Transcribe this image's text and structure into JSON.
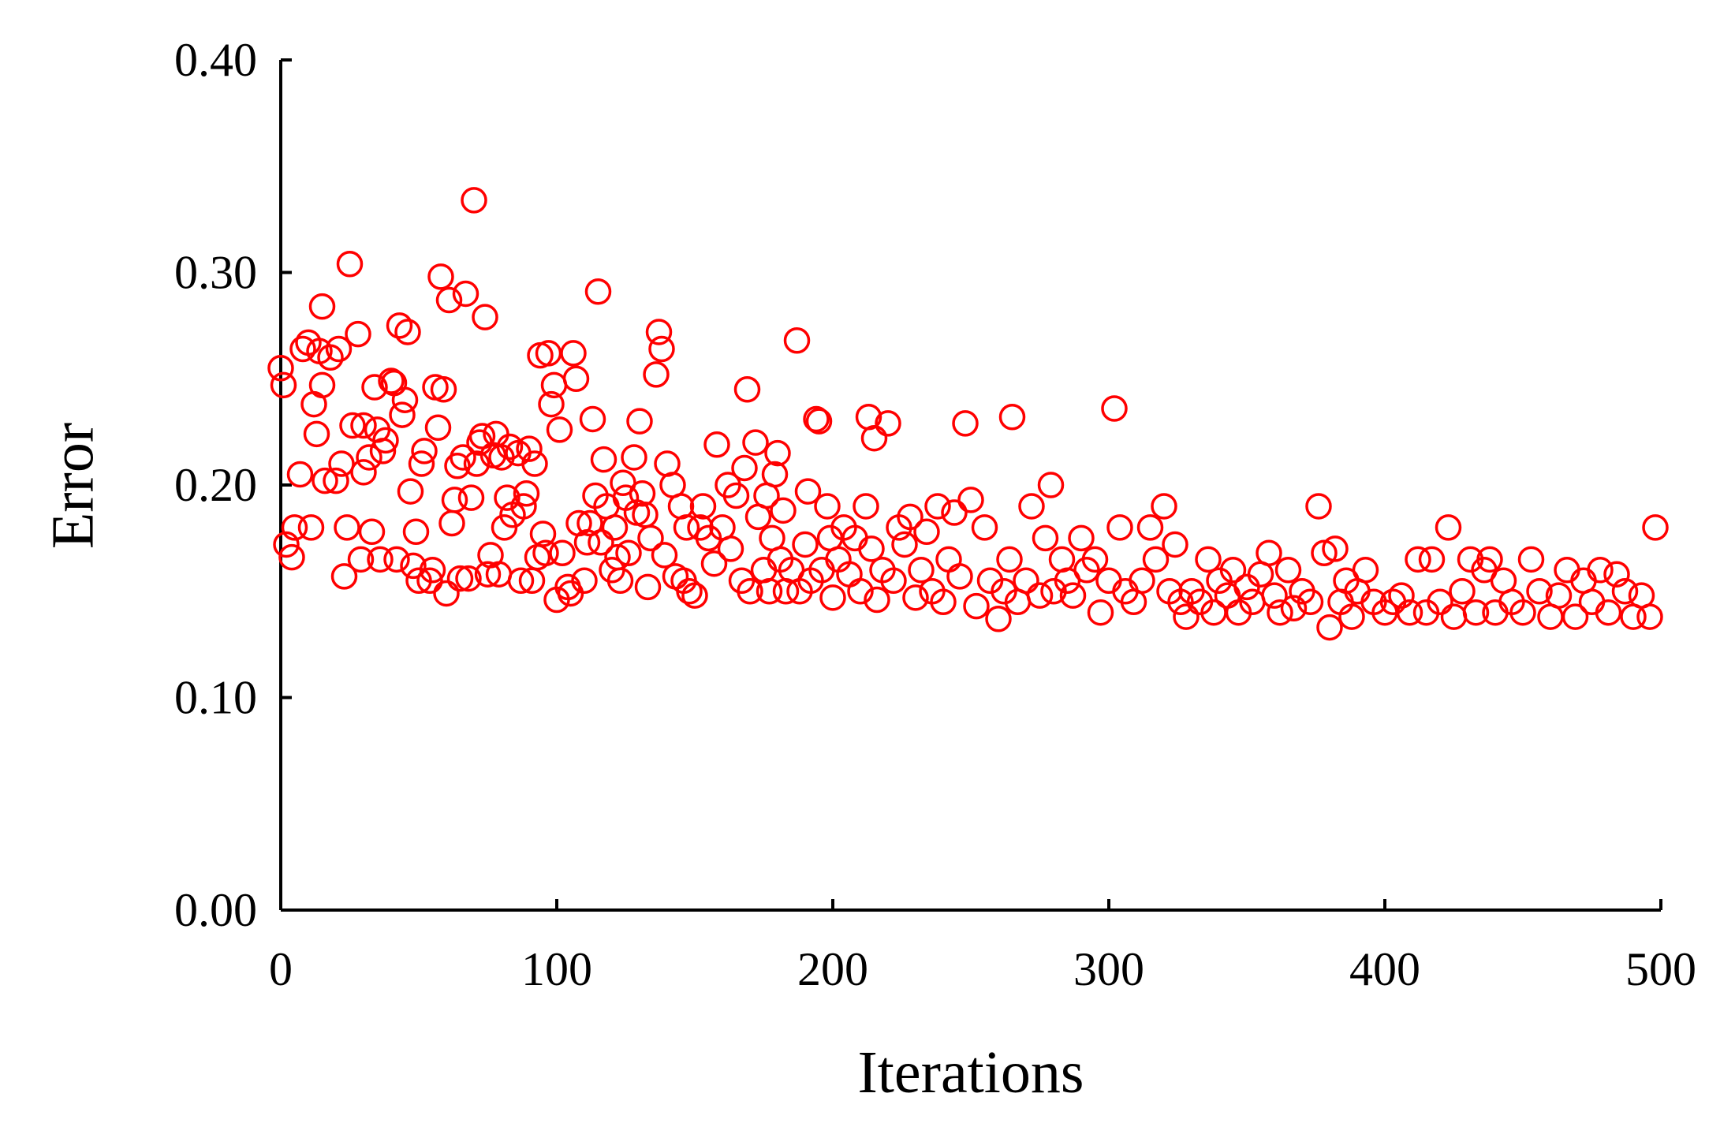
{
  "chart_data": {
    "type": "scatter",
    "xlabel": "Iterations",
    "ylabel": "Error",
    "color": "#ff0000",
    "xlim": [
      0,
      500
    ],
    "xticks": [
      0,
      100,
      200,
      300,
      400,
      500
    ],
    "ylim": [
      0,
      0.4
    ],
    "yticks": [
      {
        "value": 0,
        "label": "0.00"
      },
      {
        "value": 0.1,
        "label": "0.10"
      },
      {
        "value": 0.2,
        "label": "0.20"
      },
      {
        "value": 0.3,
        "label": "0.30"
      },
      {
        "value": 0.4,
        "label": "0.40"
      }
    ],
    "x": [
      0,
      1,
      2,
      4,
      5,
      7,
      8,
      10,
      11,
      12,
      13,
      14,
      15,
      15,
      16,
      18,
      20,
      21,
      22,
      23,
      24,
      25,
      26,
      28,
      29,
      30,
      30,
      32,
      33,
      34,
      35,
      36,
      37,
      38,
      40,
      41,
      42,
      43,
      44,
      45,
      46,
      47,
      48,
      49,
      50,
      51,
      52,
      54,
      55,
      56,
      57,
      58,
      59,
      60,
      61,
      62,
      63,
      64,
      65,
      66,
      67,
      68,
      69,
      70,
      71,
      72,
      73,
      74,
      75,
      76,
      77,
      78,
      79,
      80,
      81,
      82,
      83,
      84,
      86,
      87,
      88,
      89,
      90,
      91,
      92,
      93,
      94,
      95,
      96,
      97,
      98,
      99,
      100,
      101,
      102,
      104,
      105,
      106,
      107,
      108,
      110,
      111,
      112,
      113,
      114,
      115,
      116,
      117,
      118,
      120,
      121,
      122,
      123,
      124,
      125,
      126,
      128,
      129,
      130,
      131,
      132,
      133,
      134,
      136,
      137,
      138,
      139,
      140,
      142,
      143,
      145,
      146,
      147,
      148,
      150,
      152,
      153,
      155,
      157,
      158,
      160,
      162,
      163,
      165,
      167,
      168,
      169,
      170,
      172,
      173,
      175,
      176,
      177,
      178,
      179,
      180,
      181,
      182,
      183,
      185,
      187,
      188,
      190,
      191,
      192,
      194,
      195,
      196,
      198,
      199,
      200,
      202,
      204,
      206,
      208,
      210,
      212,
      213,
      214,
      215,
      216,
      218,
      220,
      222,
      224,
      226,
      228,
      230,
      232,
      234,
      236,
      238,
      240,
      242,
      244,
      246,
      248,
      250,
      252,
      255,
      257,
      260,
      262,
      264,
      265,
      267,
      270,
      272,
      275,
      277,
      279,
      280,
      283,
      285,
      287,
      290,
      292,
      295,
      297,
      300,
      302,
      304,
      306,
      309,
      312,
      315,
      317,
      320,
      322,
      324,
      326,
      328,
      330,
      333,
      336,
      338,
      340,
      343,
      345,
      347,
      350,
      352,
      355,
      358,
      360,
      362,
      365,
      367,
      370,
      373,
      376,
      378,
      380,
      382,
      384,
      386,
      388,
      390,
      393,
      396,
      400,
      403,
      406,
      409,
      412,
      415,
      417,
      420,
      423,
      425,
      428,
      431,
      433,
      436,
      438,
      440,
      443,
      446,
      450,
      453,
      456,
      460,
      463,
      466,
      469,
      472,
      475,
      478,
      481,
      484,
      487,
      490,
      493,
      496,
      498
    ],
    "values": [
      0.255,
      0.247,
      0.172,
      0.166,
      0.18,
      0.205,
      0.264,
      0.267,
      0.18,
      0.238,
      0.224,
      0.263,
      0.247,
      0.284,
      0.202,
      0.26,
      0.202,
      0.264,
      0.21,
      0.157,
      0.18,
      0.304,
      0.228,
      0.271,
      0.165,
      0.206,
      0.228,
      0.213,
      0.178,
      0.246,
      0.226,
      0.165,
      0.216,
      0.221,
      0.249,
      0.248,
      0.165,
      0.275,
      0.233,
      0.24,
      0.272,
      0.197,
      0.162,
      0.178,
      0.155,
      0.21,
      0.216,
      0.155,
      0.16,
      0.246,
      0.227,
      0.298,
      0.245,
      0.149,
      0.287,
      0.182,
      0.193,
      0.209,
      0.156,
      0.213,
      0.29,
      0.156,
      0.194,
      0.334,
      0.21,
      0.22,
      0.223,
      0.279,
      0.158,
      0.167,
      0.214,
      0.224,
      0.158,
      0.213,
      0.18,
      0.194,
      0.218,
      0.186,
      0.215,
      0.155,
      0.19,
      0.196,
      0.217,
      0.155,
      0.21,
      0.166,
      0.261,
      0.177,
      0.168,
      0.262,
      0.238,
      0.247,
      0.146,
      0.226,
      0.168,
      0.152,
      0.149,
      0.262,
      0.25,
      0.182,
      0.155,
      0.173,
      0.182,
      0.231,
      0.195,
      0.291,
      0.173,
      0.212,
      0.19,
      0.16,
      0.18,
      0.166,
      0.155,
      0.201,
      0.194,
      0.168,
      0.213,
      0.187,
      0.23,
      0.196,
      0.186,
      0.152,
      0.175,
      0.252,
      0.272,
      0.264,
      0.167,
      0.21,
      0.2,
      0.157,
      0.19,
      0.155,
      0.18,
      0.15,
      0.148,
      0.18,
      0.19,
      0.175,
      0.163,
      0.219,
      0.18,
      0.2,
      0.17,
      0.195,
      0.155,
      0.208,
      0.245,
      0.15,
      0.22,
      0.185,
      0.16,
      0.195,
      0.15,
      0.175,
      0.205,
      0.215,
      0.165,
      0.188,
      0.15,
      0.16,
      0.268,
      0.15,
      0.172,
      0.197,
      0.155,
      0.231,
      0.23,
      0.16,
      0.19,
      0.175,
      0.147,
      0.165,
      0.18,
      0.158,
      0.175,
      0.15,
      0.19,
      0.232,
      0.17,
      0.222,
      0.146,
      0.16,
      0.229,
      0.155,
      0.18,
      0.172,
      0.185,
      0.147,
      0.16,
      0.178,
      0.15,
      0.19,
      0.145,
      0.165,
      0.187,
      0.157,
      0.229,
      0.193,
      0.143,
      0.18,
      0.155,
      0.137,
      0.15,
      0.165,
      0.232,
      0.145,
      0.155,
      0.19,
      0.148,
      0.175,
      0.2,
      0.15,
      0.165,
      0.155,
      0.148,
      0.175,
      0.16,
      0.165,
      0.14,
      0.155,
      0.236,
      0.18,
      0.15,
      0.145,
      0.155,
      0.18,
      0.165,
      0.19,
      0.15,
      0.172,
      0.145,
      0.138,
      0.15,
      0.145,
      0.165,
      0.14,
      0.155,
      0.148,
      0.16,
      0.14,
      0.152,
      0.145,
      0.158,
      0.168,
      0.148,
      0.14,
      0.16,
      0.142,
      0.15,
      0.145,
      0.19,
      0.168,
      0.133,
      0.17,
      0.145,
      0.155,
      0.138,
      0.15,
      0.16,
      0.145,
      0.14,
      0.145,
      0.148,
      0.14,
      0.165,
      0.14,
      0.165,
      0.145,
      0.18,
      0.138,
      0.15,
      0.165,
      0.14,
      0.16,
      0.165,
      0.14,
      0.155,
      0.145,
      0.14,
      0.165,
      0.15,
      0.138,
      0.148,
      0.16,
      0.138,
      0.155,
      0.145,
      0.16,
      0.14,
      0.158,
      0.15,
      0.138,
      0.148,
      0.138,
      0.18
    ]
  }
}
